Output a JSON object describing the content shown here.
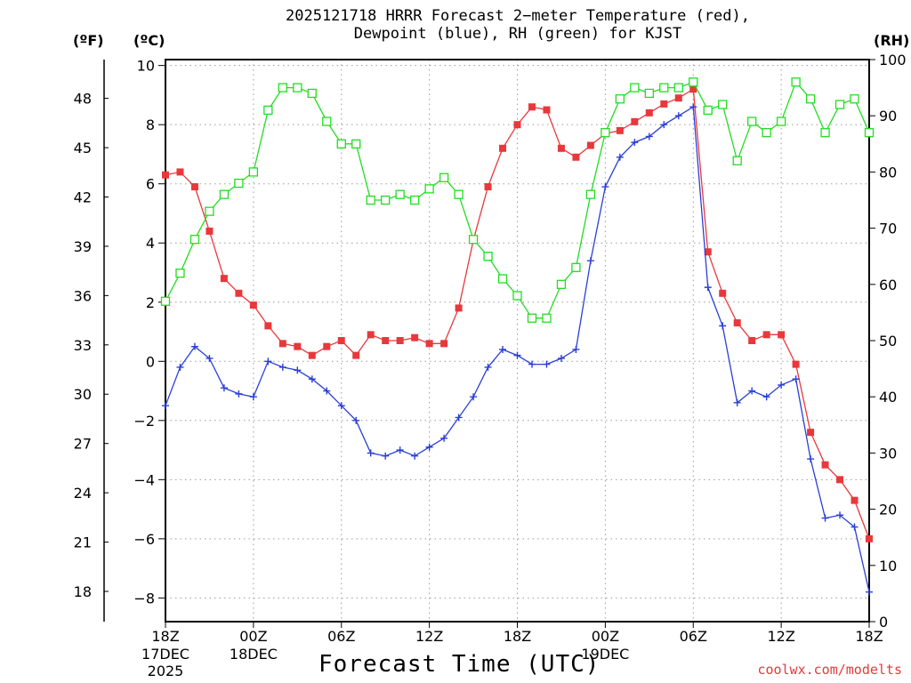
{
  "chart_data": {
    "type": "line",
    "title": "2025121718 HRRR Forecast 2−meter Temperature (red),",
    "title_line2": "Dewpoint (blue), RH (green) for KJST",
    "xlabel": "Forecast Time (UTC)",
    "credit": "coolwx.com/modelts",
    "units": {
      "left_f": "(ºF)",
      "left_c": "(ºC)",
      "right": "(RH)"
    },
    "x_range_hours": [
      0,
      48
    ],
    "x_ticks": [
      {
        "hour": 0,
        "label": "18Z",
        "sub1": "17DEC",
        "sub2": "2025"
      },
      {
        "hour": 6,
        "label": "00Z",
        "sub1": "18DEC",
        "sub2": ""
      },
      {
        "hour": 12,
        "label": "06Z",
        "sub1": "",
        "sub2": ""
      },
      {
        "hour": 18,
        "label": "12Z",
        "sub1": "",
        "sub2": ""
      },
      {
        "hour": 24,
        "label": "18Z",
        "sub1": "",
        "sub2": ""
      },
      {
        "hour": 30,
        "label": "00Z",
        "sub1": "19DEC",
        "sub2": ""
      },
      {
        "hour": 36,
        "label": "06Z",
        "sub1": "",
        "sub2": ""
      },
      {
        "hour": 42,
        "label": "12Z",
        "sub1": "",
        "sub2": ""
      },
      {
        "hour": 48,
        "label": "18Z",
        "sub1": "",
        "sub2": ""
      }
    ],
    "y_c_range": [
      -8.8,
      10.2
    ],
    "y_c_ticks": [
      "10",
      "8",
      "6",
      "4",
      "2",
      "0",
      "−2",
      "−4",
      "−6",
      "−8"
    ],
    "y_c_tick_values": [
      10,
      8,
      6,
      4,
      2,
      0,
      -2,
      -4,
      -6,
      -8
    ],
    "y_f_ticks": [
      "48",
      "45",
      "42",
      "39",
      "36",
      "33",
      "30",
      "27",
      "24",
      "21",
      "18"
    ],
    "y_f_tick_values": [
      48,
      45,
      42,
      39,
      36,
      33,
      30,
      27,
      24,
      21,
      18
    ],
    "y_rh_range": [
      0,
      100
    ],
    "y_rh_ticks": [
      "100",
      "90",
      "80",
      "70",
      "60",
      "50",
      "40",
      "30",
      "20",
      "10",
      "0"
    ],
    "y_rh_tick_values": [
      100,
      90,
      80,
      70,
      60,
      50,
      40,
      30,
      20,
      10,
      0
    ],
    "series": [
      {
        "name": "Temperature",
        "color": "#e8383c",
        "marker": "filled-square",
        "axis": "c",
        "values": [
          6.3,
          6.4,
          5.9,
          4.4,
          2.8,
          2.3,
          1.9,
          1.2,
          0.6,
          0.5,
          0.2,
          0.5,
          0.7,
          0.2,
          0.9,
          0.7,
          0.7,
          0.8,
          0.6,
          0.6,
          1.8,
          4.1,
          5.9,
          7.2,
          8.0,
          8.6,
          8.5,
          7.2,
          6.9,
          7.3,
          7.7,
          7.8,
          8.1,
          8.4,
          8.7,
          8.9,
          9.2,
          3.7,
          2.3,
          1.3,
          0.7,
          0.9,
          0.9,
          -0.1,
          -2.4,
          -3.5,
          -4.0,
          -4.7,
          -6.0
        ]
      },
      {
        "name": "Dewpoint",
        "color": "#2a3fd6",
        "marker": "plus",
        "axis": "c",
        "values": [
          -1.5,
          -0.2,
          0.5,
          0.1,
          -0.9,
          -1.1,
          -1.2,
          0.0,
          -0.2,
          -0.3,
          -0.6,
          -1.0,
          -1.5,
          -2.0,
          -3.1,
          -3.2,
          -3.0,
          -3.2,
          -2.9,
          -2.6,
          -1.9,
          -1.2,
          -0.2,
          0.4,
          0.2,
          -0.1,
          -0.1,
          0.1,
          0.4,
          3.4,
          5.9,
          6.9,
          7.4,
          7.6,
          8.0,
          8.3,
          8.6,
          2.5,
          1.2,
          -1.4,
          -1.0,
          -1.2,
          -0.8,
          -0.6,
          -3.3,
          -5.3,
          -5.2,
          -5.6,
          -7.8
        ]
      },
      {
        "name": "RH",
        "color": "#22dd22",
        "marker": "open-square",
        "axis": "rh",
        "values": [
          57,
          62,
          68,
          73,
          76,
          78,
          80,
          91,
          95,
          95,
          94,
          89,
          85,
          85,
          75,
          75,
          76,
          75,
          77,
          79,
          76,
          68,
          65,
          61,
          58,
          54,
          54,
          60,
          63,
          76,
          87,
          93,
          95,
          94,
          95,
          95,
          96,
          91,
          92,
          82,
          89,
          87,
          89,
          96,
          93,
          87,
          92,
          93,
          87
        ]
      }
    ]
  }
}
